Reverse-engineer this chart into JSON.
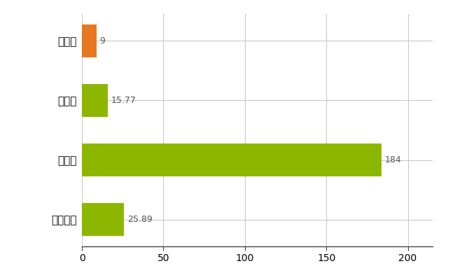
{
  "categories": [
    "門川町",
    "県平均",
    "県最大",
    "全国平均"
  ],
  "values": [
    9,
    15.77,
    184,
    25.89
  ],
  "bar_colors": [
    "#e87722",
    "#8db600",
    "#8db600",
    "#8db600"
  ],
  "value_labels": [
    "9",
    "15.77",
    "184",
    "25.89"
  ],
  "xlim": [
    0,
    215
  ],
  "xticks": [
    0,
    50,
    100,
    150,
    200
  ],
  "background_color": "#ffffff",
  "grid_color": "#c8c8c8",
  "bar_height": 0.55,
  "figsize": [
    6.5,
    4.0
  ],
  "dpi": 100,
  "label_color": "#555555",
  "label_fontsize": 9,
  "tick_fontsize": 10,
  "ytick_fontsize": 11
}
